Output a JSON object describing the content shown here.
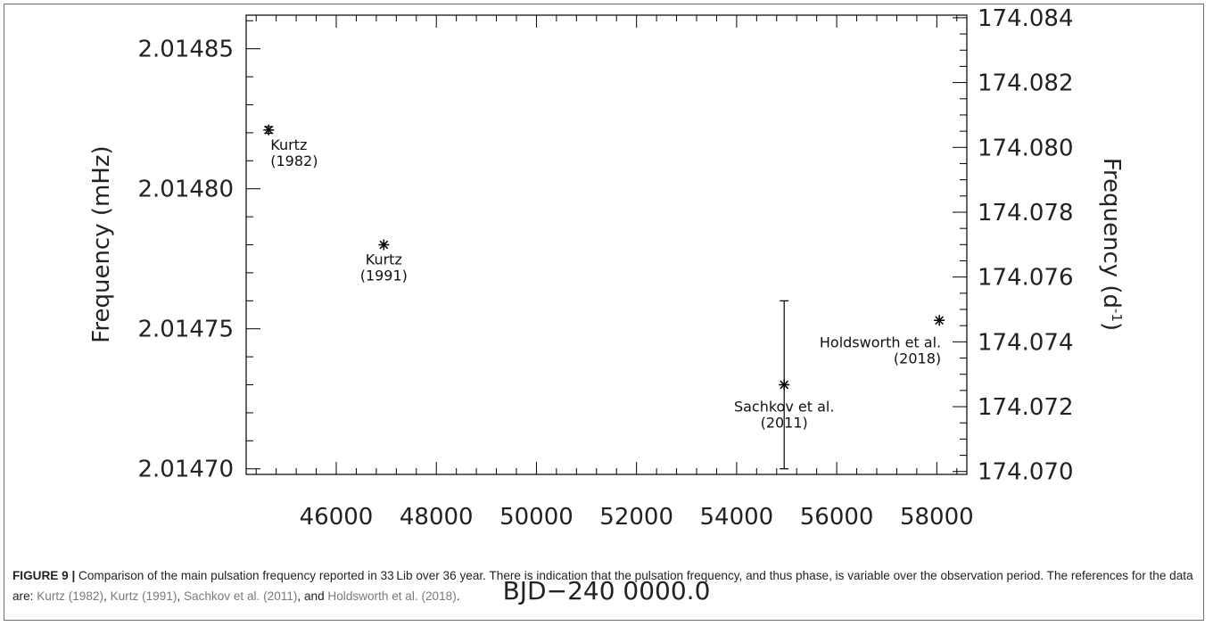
{
  "chart_data": {
    "type": "scatter",
    "title": "",
    "xlabel": "BJD−240 0000.0",
    "ylabel_left": "Frequency (mHz)",
    "ylabel_right_base": "Frequency (d",
    "ylabel_right_sup": "-1",
    "ylabel_right_close": ")",
    "xlim": [
      44200,
      58600
    ],
    "ylim_left": [
      2.014698,
      2.014862
    ],
    "ylim_right": [
      174.06991,
      174.08408
    ],
    "x_ticks": [
      46000,
      48000,
      50000,
      52000,
      54000,
      56000,
      58000
    ],
    "x_tick_labels": [
      "46000",
      "48000",
      "50000",
      "52000",
      "54000",
      "56000",
      "58000"
    ],
    "y_left_ticks": [
      2.0147,
      2.01475,
      2.0148,
      2.01485
    ],
    "y_left_tick_labels": [
      "2.01470",
      "2.01475",
      "2.01480",
      "2.01485"
    ],
    "y_right_ticks": [
      174.07,
      174.072,
      174.074,
      174.076,
      174.078,
      174.08,
      174.082,
      174.084
    ],
    "y_right_tick_labels": [
      "174.070",
      "174.072",
      "174.074",
      "174.076",
      "174.078",
      "174.080",
      "174.082",
      "174.084"
    ],
    "grid": false,
    "points": [
      {
        "x": 44650,
        "y": 2.014821,
        "yerr": 1.2e-06,
        "label_lines": [
          "Kurtz",
          "(1982)"
        ],
        "label_align": "start"
      },
      {
        "x": 46950,
        "y": 2.01478,
        "yerr": 0,
        "label_lines": [
          "Kurtz",
          "(1991)"
        ],
        "label_align": "middle"
      },
      {
        "x": 54950,
        "y": 2.01473,
        "yerr": 3e-05,
        "label_lines": [
          "Sachkov et al.",
          "(2011)"
        ],
        "label_align": "middle"
      },
      {
        "x": 58050,
        "y": 2.014753,
        "yerr": 0,
        "label_lines": [
          "Holdsworth et al.",
          "(2018)"
        ],
        "label_align": "end"
      }
    ]
  },
  "caption": {
    "figure_label": "FIGURE 9 |",
    "text_1": " Comparison of the main pulsation frequency reported in 33 Lib over 36 year. There is indication that the pulsation frequency, and thus phase, is variable over the observation period. The references for the data are: ",
    "ref_1": "Kurtz (1982)",
    "sep_1": ", ",
    "ref_2": "Kurtz (1991)",
    "sep_2": ", ",
    "ref_3": "Sachkov et al. (2011)",
    "sep_3": ", and ",
    "ref_4": "Holdsworth et al. (2018)",
    "end": "."
  }
}
